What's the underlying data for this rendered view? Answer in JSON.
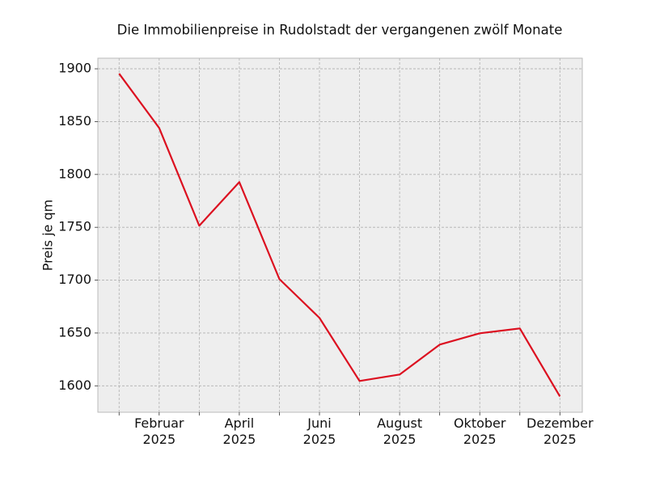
{
  "chart_data": {
    "type": "line",
    "title": "Die Immobilienpreise in Rudolstadt der vergangenen zwölf Monate",
    "y_label": "Preis je qm",
    "categories": [
      null,
      "Februar\n2025",
      null,
      "April\n2025",
      null,
      "Juni\n2025",
      null,
      "August\n2025",
      null,
      "Oktober\n2025",
      null,
      "Dezember\n2025"
    ],
    "series": [
      {
        "name": "Preis je qm",
        "color": "#dc1020",
        "values": [
          1895.4,
          1844,
          1751.5,
          1792.8,
          1701,
          1664.3,
          1604.6,
          1610.7,
          1639,
          1649.7,
          1654.3,
          1590
        ]
      }
    ],
    "ylim": [
      1575,
      1910
    ],
    "yticks": [
      1600,
      1650,
      1700,
      1750,
      1800,
      1850,
      1900
    ],
    "grid": true
  }
}
